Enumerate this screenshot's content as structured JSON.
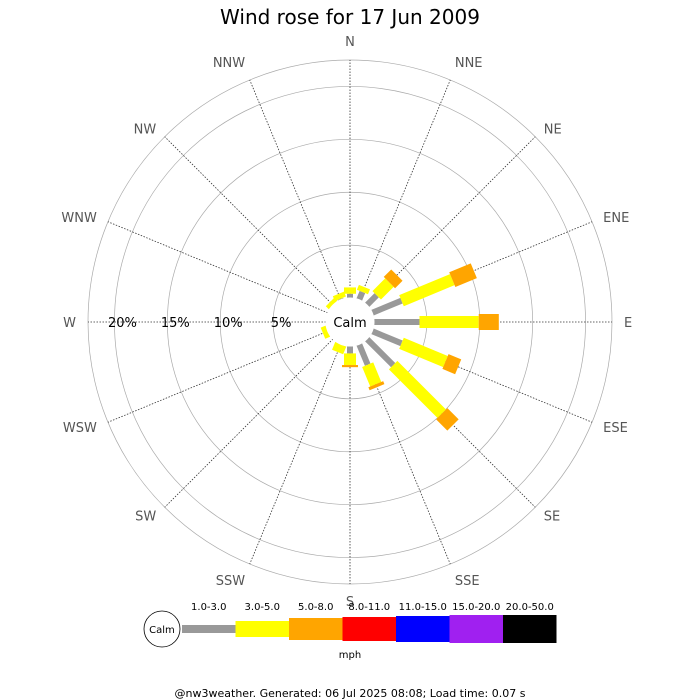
{
  "chart_data": {
    "type": "wind-rose",
    "title": "Wind rose for 17 Jun 2009",
    "directions": [
      "N",
      "NNE",
      "NE",
      "ENE",
      "E",
      "ESE",
      "SE",
      "SSE",
      "S",
      "SSW",
      "SW",
      "WSW",
      "W",
      "WNW",
      "NW",
      "NNW"
    ],
    "radial_ticks": [
      "5%",
      "10%",
      "15%",
      "20%"
    ],
    "radial_values": [
      5,
      10,
      15,
      20
    ],
    "radial_max": 22.5,
    "calm_label": "Calm",
    "unit": "mph",
    "speed_bins": [
      "1.0-3.0",
      "3.0-5.0",
      "5.0-8.0",
      "8.0-11.0",
      "11.0-15.0",
      "15.0-20.0",
      "20.0-50.0"
    ],
    "bin_colors": [
      "#999999",
      "#ffff00",
      "#ffa500",
      "#ff0000",
      "#0000ff",
      "#a020f0",
      "#000000"
    ],
    "series": [
      {
        "name": "1.0-3.0",
        "values": [
          0.4,
          0.8,
          1.3,
          3.0,
          4.3,
          3.0,
          3.5,
          2.1,
          0.7,
          0.0,
          0.0,
          0.0,
          0.0,
          0.0,
          0.0,
          0.1
        ]
      },
      {
        "name": "3.0-5.0",
        "values": [
          0.6,
          0.5,
          1.7,
          5.2,
          5.6,
          4.5,
          6.5,
          2.0,
          1.1,
          0.8,
          0.0,
          0.5,
          0.0,
          0.0,
          0.4,
          0.5
        ]
      },
      {
        "name": "5.0-8.0",
        "values": [
          0.0,
          0.0,
          1.0,
          2.2,
          1.9,
          1.3,
          1.5,
          0.3,
          0.2,
          0.0,
          0.0,
          0.0,
          0.0,
          0.0,
          0.0,
          0.0
        ]
      },
      {
        "name": "8.0-11.0",
        "values": [
          0.0,
          0.0,
          0.0,
          0.0,
          0.0,
          0.0,
          0.0,
          0.0,
          0.0,
          0.0,
          0.0,
          0.0,
          0.0,
          0.0,
          0.0,
          0.0
        ]
      },
      {
        "name": "11.0-15.0",
        "values": [
          0.0,
          0.0,
          0.0,
          0.0,
          0.0,
          0.0,
          0.0,
          0.0,
          0.0,
          0.0,
          0.0,
          0.0,
          0.0,
          0.0,
          0.0,
          0.0
        ]
      },
      {
        "name": "15.0-20.0",
        "values": [
          0.0,
          0.0,
          0.0,
          0.0,
          0.0,
          0.0,
          0.0,
          0.0,
          0.0,
          0.0,
          0.0,
          0.0,
          0.0,
          0.0,
          0.0,
          0.0
        ]
      },
      {
        "name": "20.0-50.0",
        "values": [
          0.0,
          0.0,
          0.0,
          0.0,
          0.0,
          0.0,
          0.0,
          0.0,
          0.0,
          0.0,
          0.0,
          0.0,
          0.0,
          0.0,
          0.0,
          0.0
        ]
      }
    ],
    "footer": "@nw3weather. Generated: 06 Jul 2025 08:08; Load time: 0.07 s"
  }
}
